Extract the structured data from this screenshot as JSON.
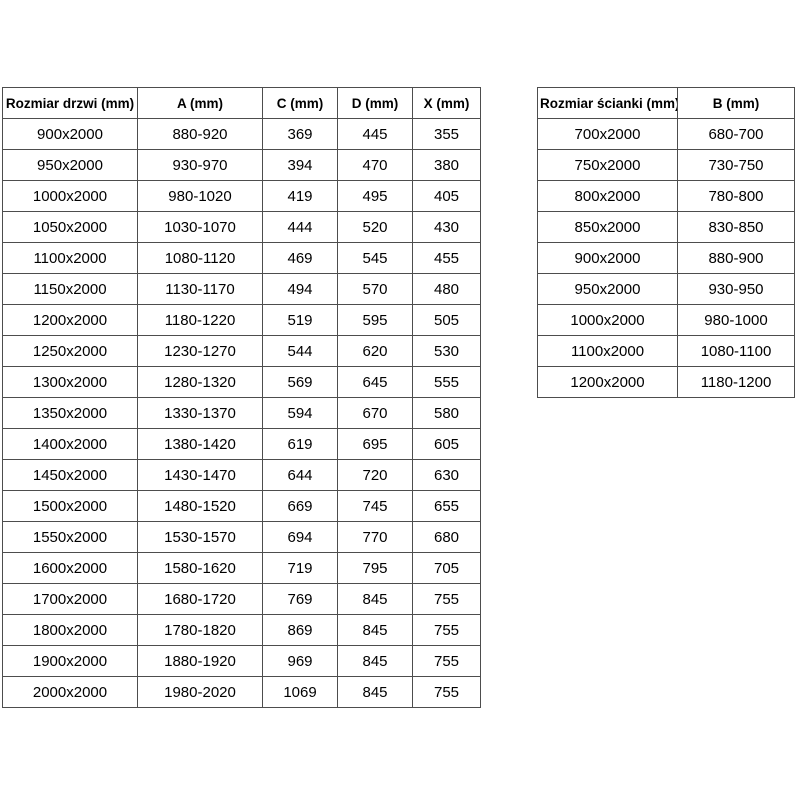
{
  "colors": {
    "background": "#ffffff",
    "border": "#4d4d4d",
    "text": "#000000"
  },
  "doors_table": {
    "headers": [
      "Rozmiar drzwi (mm)",
      "A (mm)",
      "C (mm)",
      "D (mm)",
      "X (mm)"
    ],
    "rows": [
      [
        "900x2000",
        "880-920",
        "369",
        "445",
        "355"
      ],
      [
        "950x2000",
        "930-970",
        "394",
        "470",
        "380"
      ],
      [
        "1000x2000",
        "980-1020",
        "419",
        "495",
        "405"
      ],
      [
        "1050x2000",
        "1030-1070",
        "444",
        "520",
        "430"
      ],
      [
        "1100x2000",
        "1080-1120",
        "469",
        "545",
        "455"
      ],
      [
        "1150x2000",
        "1130-1170",
        "494",
        "570",
        "480"
      ],
      [
        "1200x2000",
        "1180-1220",
        "519",
        "595",
        "505"
      ],
      [
        "1250x2000",
        "1230-1270",
        "544",
        "620",
        "530"
      ],
      [
        "1300x2000",
        "1280-1320",
        "569",
        "645",
        "555"
      ],
      [
        "1350x2000",
        "1330-1370",
        "594",
        "670",
        "580"
      ],
      [
        "1400x2000",
        "1380-1420",
        "619",
        "695",
        "605"
      ],
      [
        "1450x2000",
        "1430-1470",
        "644",
        "720",
        "630"
      ],
      [
        "1500x2000",
        "1480-1520",
        "669",
        "745",
        "655"
      ],
      [
        "1550x2000",
        "1530-1570",
        "694",
        "770",
        "680"
      ],
      [
        "1600x2000",
        "1580-1620",
        "719",
        "795",
        "705"
      ],
      [
        "1700x2000",
        "1680-1720",
        "769",
        "845",
        "755"
      ],
      [
        "1800x2000",
        "1780-1820",
        "869",
        "845",
        "755"
      ],
      [
        "1900x2000",
        "1880-1920",
        "969",
        "845",
        "755"
      ],
      [
        "2000x2000",
        "1980-2020",
        "1069",
        "845",
        "755"
      ]
    ]
  },
  "walls_table": {
    "headers": [
      "Rozmiar ścianki (mm)",
      "B (mm)"
    ],
    "rows": [
      [
        "700x2000",
        "680-700"
      ],
      [
        "750x2000",
        "730-750"
      ],
      [
        "800x2000",
        "780-800"
      ],
      [
        "850x2000",
        "830-850"
      ],
      [
        "900x2000",
        "880-900"
      ],
      [
        "950x2000",
        "930-950"
      ],
      [
        "1000x2000",
        "980-1000"
      ],
      [
        "1100x2000",
        "1080-1100"
      ],
      [
        "1200x2000",
        "1180-1200"
      ]
    ]
  }
}
